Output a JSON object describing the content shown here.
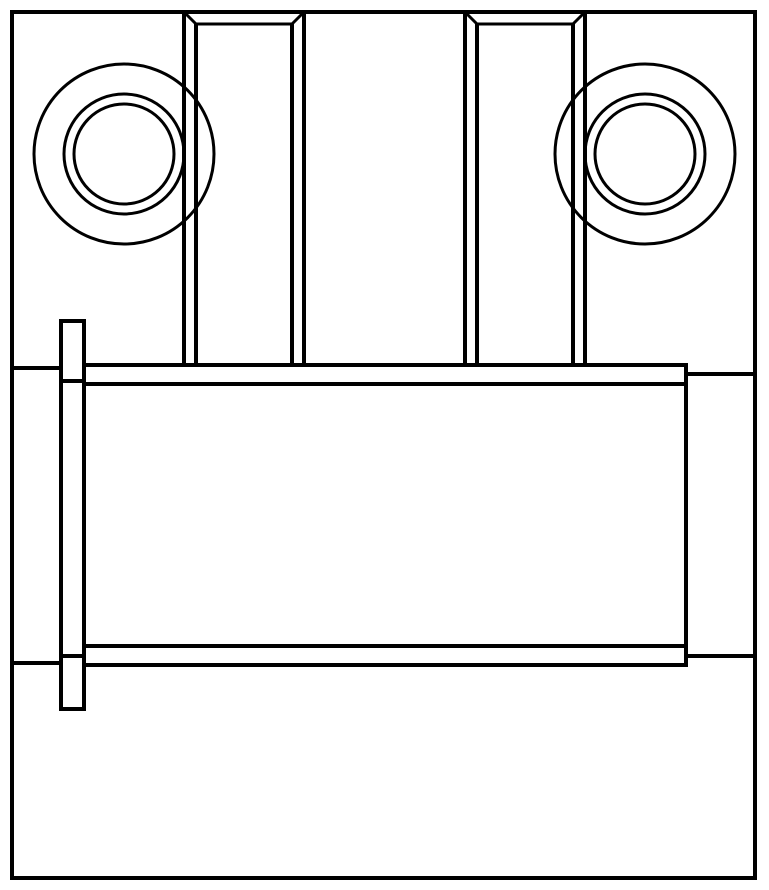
{
  "diagram": {
    "kind": "technical line drawing",
    "labels": [],
    "colors": {
      "stroke": "#000000",
      "background": "#ffffff"
    }
  }
}
